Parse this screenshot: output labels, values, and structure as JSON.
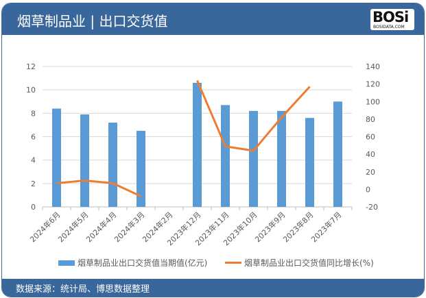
{
  "header": {
    "title": "烟草制品业 | 出口交货值",
    "logo_text": "BOSi",
    "logo_sub": "BOSIDATA.COM"
  },
  "footer": {
    "source": "数据来源：统计局、博思数据整理"
  },
  "colors": {
    "bar": "#5b9bd5",
    "line": "#ed7d31",
    "header": "#3a679b"
  },
  "chart_data": {
    "type": "bar+line",
    "categories": [
      "2024年6月",
      "2024年5月",
      "2024年4月",
      "2024年3月",
      "2024年2月",
      "2023年12月",
      "2023年11月",
      "2023年10月",
      "2023年9月",
      "2023年8月",
      "2023年7月"
    ],
    "series": [
      {
        "name": "烟草制品业出口交货值当期值(亿元)",
        "type": "bar",
        "axis": "left",
        "values": [
          8.4,
          7.9,
          7.2,
          6.5,
          null,
          10.6,
          8.7,
          8.2,
          8.2,
          7.6,
          9.0
        ]
      },
      {
        "name": "烟草制品业出口交货值同比增长(%)",
        "type": "line",
        "axis": "right",
        "values": [
          7,
          10,
          7,
          -8,
          null,
          124,
          49,
          44,
          82,
          117,
          null
        ]
      }
    ],
    "y_left": {
      "range": [
        0,
        12
      ],
      "ticks": [
        0,
        2,
        4,
        6,
        8,
        10,
        12
      ]
    },
    "y_right": {
      "range": [
        -20,
        140
      ],
      "ticks": [
        -20,
        0,
        20,
        40,
        60,
        80,
        100,
        120,
        140
      ]
    },
    "grid": true,
    "legend": "bottom"
  }
}
